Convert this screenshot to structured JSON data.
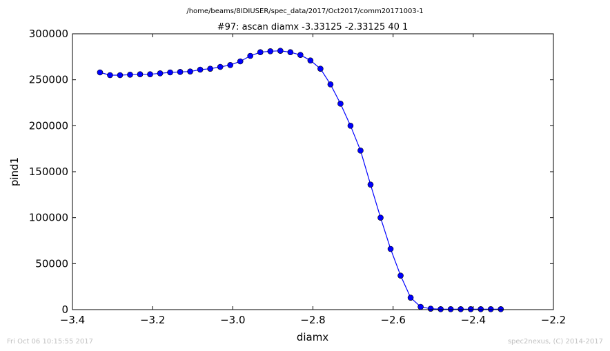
{
  "chart_data": {
    "type": "line",
    "supertitle": "/home/beams/8IDIUSER/spec_data/2017/Oct2017/comm20171003-1",
    "title": "#97: ascan  diamx -3.33125 -2.33125  40 1",
    "xlabel": "diamx",
    "ylabel": "pind1",
    "xlim": [
      -3.4,
      -2.2
    ],
    "ylim": [
      0,
      300000
    ],
    "x_ticks": [
      -3.4,
      -3.2,
      -3.0,
      -2.8,
      -2.6,
      -2.4,
      -2.2
    ],
    "x_tick_labels": [
      "−3.4",
      "−3.2",
      "−3.0",
      "−2.8",
      "−2.6",
      "−2.4",
      "−2.2"
    ],
    "y_ticks": [
      0,
      50000,
      100000,
      150000,
      200000,
      250000,
      300000
    ],
    "y_tick_labels": [
      "0",
      "50000",
      "100000",
      "150000",
      "200000",
      "250000",
      "300000"
    ],
    "grid": false,
    "series": [
      {
        "color": "#0000ff",
        "marker": "circle",
        "x": [
          -3.33125,
          -3.30625,
          -3.28125,
          -3.25625,
          -3.23125,
          -3.20625,
          -3.18125,
          -3.15625,
          -3.13125,
          -3.10625,
          -3.08125,
          -3.05625,
          -3.03125,
          -3.00625,
          -2.98125,
          -2.95625,
          -2.93125,
          -2.90625,
          -2.88125,
          -2.85625,
          -2.83125,
          -2.80625,
          -2.78125,
          -2.75625,
          -2.73125,
          -2.70625,
          -2.68125,
          -2.65625,
          -2.63125,
          -2.60625,
          -2.58125,
          -2.55625,
          -2.53125,
          -2.50625,
          -2.48125,
          -2.45625,
          -2.43125,
          -2.40625,
          -2.38125,
          -2.35625,
          -2.33125
        ],
        "y": [
          258000,
          255000,
          255000,
          255500,
          256000,
          256000,
          257000,
          258000,
          258500,
          259000,
          261000,
          262000,
          264000,
          266000,
          270000,
          276000,
          280000,
          281000,
          281500,
          280000,
          277000,
          271000,
          262000,
          245000,
          224000,
          200000,
          173000,
          136000,
          100000,
          66000,
          37000,
          13000,
          3000,
          1000,
          500,
          500,
          500,
          500,
          500,
          500,
          500
        ]
      }
    ]
  },
  "footer": {
    "timestamp": "Fri Oct 06 10:15:55 2017",
    "credit": "spec2nexus, (C) 2014-2017"
  }
}
